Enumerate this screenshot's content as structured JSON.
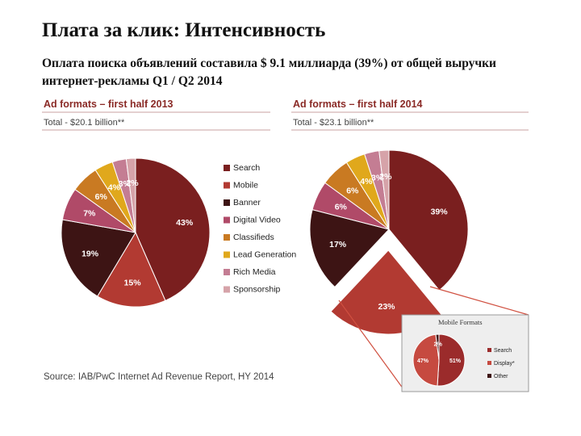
{
  "slide": {
    "title": "Плата за клик: Интенсивность",
    "subtitle": "Оплата поиска объявлений составила $ 9.1 миллиарда (39%) от общей выручки интернет-рекламы Q1 / Q2 2014"
  },
  "source": "Source: IAB/PwC Internet Ad Revenue Report, HY 2014",
  "legend": {
    "items": [
      {
        "label": "Search",
        "color": "#7a1f1f"
      },
      {
        "label": "Mobile",
        "color": "#b23a32"
      },
      {
        "label": "Banner",
        "color": "#3d1414"
      },
      {
        "label": "Digital Video",
        "color": "#b04a68"
      },
      {
        "label": "Classifieds",
        "color": "#c97a22"
      },
      {
        "label": "Lead Generation",
        "color": "#e0a81c"
      },
      {
        "label": "Rich Media",
        "color": "#c47d93"
      },
      {
        "label": "Sponsorship",
        "color": "#d6a3a9"
      }
    ]
  },
  "chart_data": [
    {
      "type": "pie",
      "title": "Ad formats – first half 2013",
      "subtitle": "Total - $20.1 billion**",
      "categories": [
        "Search",
        "Mobile",
        "Banner",
        "Digital Video",
        "Classifieds",
        "Lead Generation",
        "Rich Media",
        "Sponsorship"
      ],
      "values": [
        43,
        15,
        19,
        7,
        6,
        4,
        3,
        2
      ],
      "labels": [
        "43%",
        "15%",
        "19%",
        "7%",
        "6%",
        "4%",
        "3%",
        "2%"
      ],
      "colors": [
        "#7a1f1f",
        "#b23a32",
        "#3d1414",
        "#b04a68",
        "#c97a22",
        "#e0a81c",
        "#c47d93",
        "#d6a3a9"
      ],
      "legend_position": "right"
    },
    {
      "type": "pie",
      "title": "Ad formats – first half 2014",
      "subtitle": "Total - $23.1 billion**",
      "categories": [
        "Search",
        "Mobile",
        "Banner",
        "Digital Video",
        "Classifieds",
        "Lead Generation",
        "Rich Media",
        "Sponsorship"
      ],
      "values": [
        39,
        23,
        17,
        6,
        6,
        4,
        3,
        2
      ],
      "labels": [
        "39%",
        "23%",
        "17%",
        "6%",
        "6%",
        "4%",
        "3%",
        "2%"
      ],
      "colors": [
        "#7a1f1f",
        "#b23a32",
        "#3d1414",
        "#b04a68",
        "#c97a22",
        "#e0a81c",
        "#c47d93",
        "#d6a3a9"
      ],
      "exploded": "Mobile"
    },
    {
      "type": "pie",
      "title": "Mobile Formats",
      "categories": [
        "Search",
        "Display*",
        "Other"
      ],
      "values": [
        51,
        47,
        2
      ],
      "labels": [
        "51%",
        "47%",
        "2%"
      ],
      "colors": [
        "#9b2b2b",
        "#c64a40",
        "#3d1414"
      ],
      "legend_position": "right"
    }
  ]
}
